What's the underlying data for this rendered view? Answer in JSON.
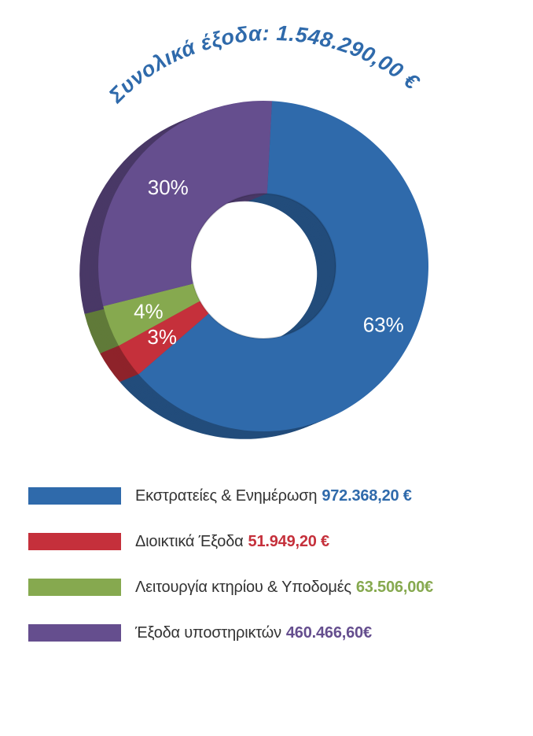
{
  "chart_data": {
    "type": "pie",
    "title": "Συνολικά έξοδα: 1.548.290,00 €",
    "slices": [
      {
        "name": "Εκστρατείες & Ενημέρωση",
        "value": 972368.2,
        "value_label": "972.368,20 €",
        "percent_label": "63%",
        "color": "#2f6aab"
      },
      {
        "name": "Διοικτικά Έξοδα",
        "value": 51949.2,
        "value_label": "51.949,20 €",
        "percent_label": "3%",
        "color": "#c5303b"
      },
      {
        "name": "Λειτουργία κτηρίου & Υποδομές",
        "value": 63506.0,
        "value_label": "63.506,00€",
        "percent_label": "4%",
        "color": "#86a94f"
      },
      {
        "name": "Έξοδα υποστηρικτών",
        "value": 460466.6,
        "value_label": "460.466,60€",
        "percent_label": "30%",
        "color": "#654e8e"
      }
    ]
  }
}
